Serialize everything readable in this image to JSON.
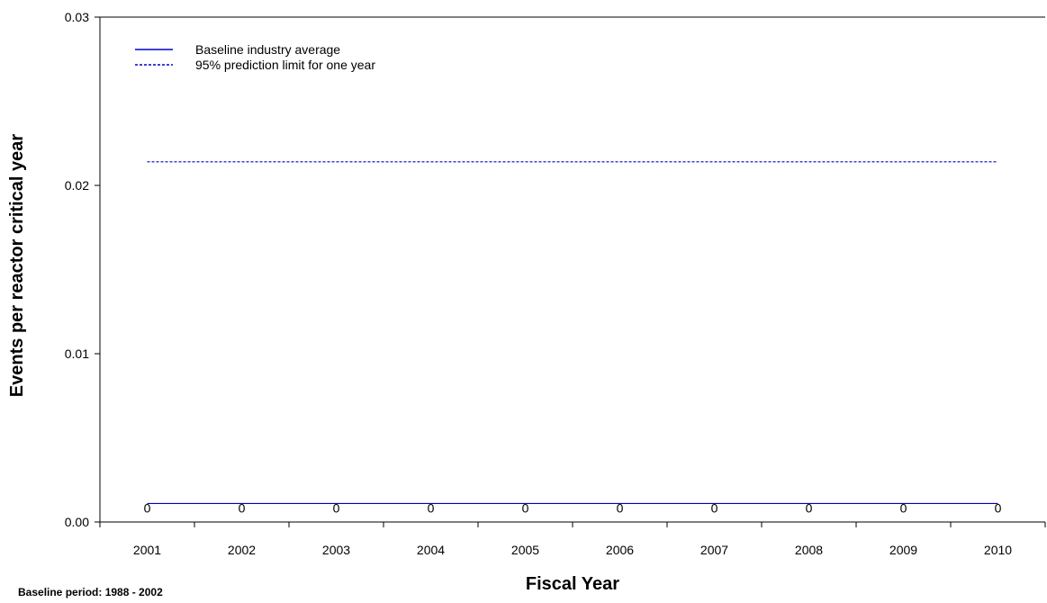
{
  "chart_data": {
    "type": "line",
    "categories": [
      "2001",
      "2002",
      "2003",
      "2004",
      "2005",
      "2006",
      "2007",
      "2008",
      "2009",
      "2010"
    ],
    "series": [
      {
        "name": "Baseline industry average",
        "values": [
          0.0011,
          0.0011,
          0.0011,
          0.0011,
          0.0011,
          0.0011,
          0.0011,
          0.0011,
          0.0011,
          0.0011
        ],
        "style": "solid",
        "color": "#0000cc"
      },
      {
        "name": "95%  prediction limit for one year",
        "values": [
          0.0214,
          0.0214,
          0.0214,
          0.0214,
          0.0214,
          0.0214,
          0.0214,
          0.0214,
          0.0214,
          0.0214
        ],
        "style": "dashed",
        "color": "#0000cc"
      }
    ],
    "data_labels": [
      "0",
      "0",
      "0",
      "0",
      "0",
      "0",
      "0",
      "0",
      "0",
      "0"
    ],
    "xlabel": "Fiscal Year",
    "ylabel": "Events per reactor critical year",
    "ylim": [
      0,
      0.03
    ],
    "yticks": [
      "0.00",
      "0.01",
      "0.02",
      "0.03"
    ],
    "grid": false,
    "legend_position": "top-left"
  },
  "footnote": "Baseline period:  1988  - 2002"
}
